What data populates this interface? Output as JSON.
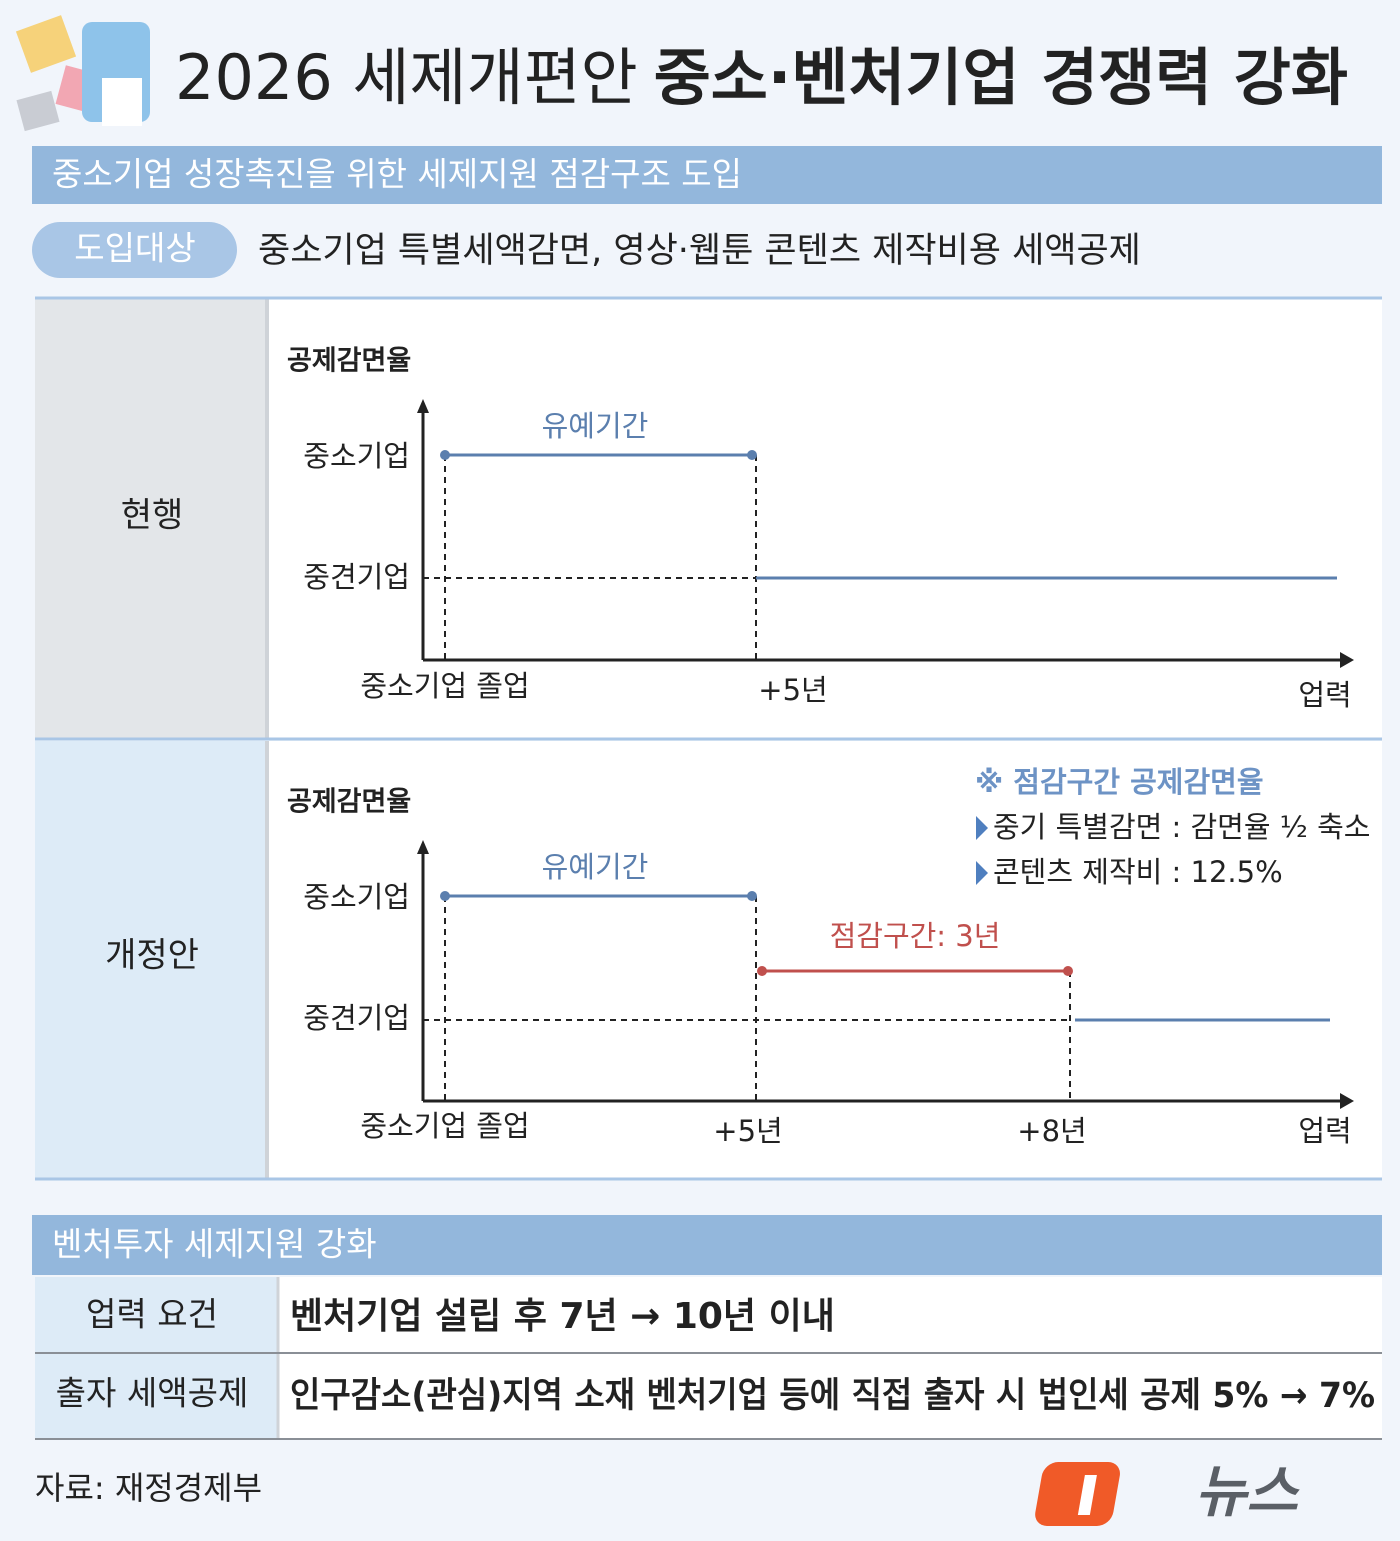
{
  "header": {
    "title_light": "2026 세제개편안",
    "title_bold": "중소·벤처기업 경쟁력 강화"
  },
  "section1": {
    "title": "중소기업 성장촉진을 위한 세제지원 점감구조 도입",
    "target_label": "도입대상",
    "target_text": "중소기업 특별세액감면, 영상·웹툰 콘텐츠 제작비용 세액공제"
  },
  "current": {
    "label": "현행",
    "y_axis": "공제감면율",
    "levels": [
      "중소기업",
      "중견기업"
    ],
    "period": "유예기간",
    "x_labels": [
      "중소기업 졸업",
      "+5년",
      "업력"
    ]
  },
  "revised": {
    "label": "개정안",
    "y_axis": "공제감면율",
    "levels": [
      "중소기업",
      "중견기업"
    ],
    "period": "유예기간",
    "phase": "점감구간: 3년",
    "x_labels": [
      "중소기업 졸업",
      "+5년",
      "+8년",
      "업력"
    ],
    "note": {
      "title": "※ 점감구간 공제감면율",
      "items": [
        "중기 특별감면 : 감면율 ½ 축소",
        "콘텐츠 제작비 : 12.5%"
      ]
    }
  },
  "section2": {
    "title": "벤처투자 세제지원 강화",
    "rows": [
      [
        "업력 요건",
        "벤처기업 설립 후 7년 → 10년 이내"
      ],
      [
        "출자 세액공제",
        "인구감소(관심)지역 소재 벤처기업 등에 직접 출자 시 법인세 공제 5% → 7%"
      ]
    ]
  },
  "source": "자료: 재정경제부",
  "logo": "뉴스"
}
